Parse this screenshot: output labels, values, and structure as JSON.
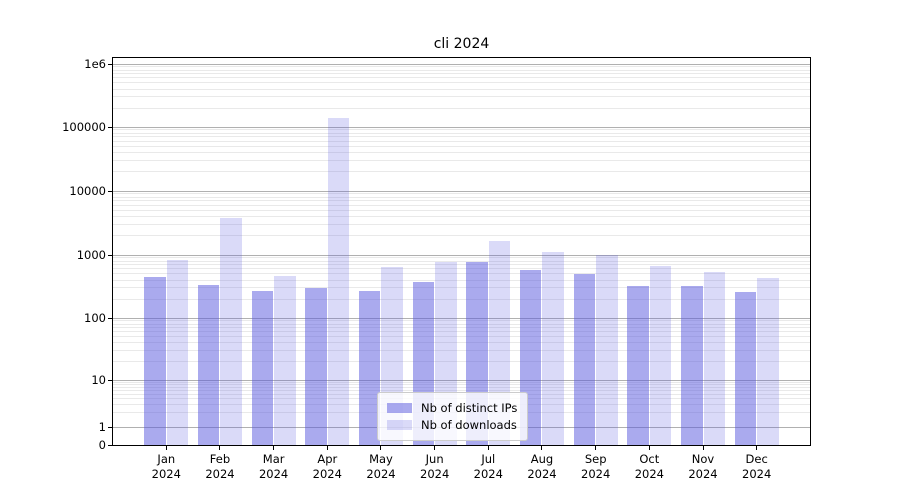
{
  "chart_data": {
    "type": "bar",
    "title": "cli 2024",
    "categories": [
      "Jan 2024",
      "Feb 2024",
      "Mar 2024",
      "Apr 2024",
      "May 2024",
      "Jun 2024",
      "Jul 2024",
      "Aug 2024",
      "Sep 2024",
      "Oct 2024",
      "Nov 2024",
      "Dec 2024"
    ],
    "x_tick_months": [
      "Jan",
      "Feb",
      "Mar",
      "Apr",
      "May",
      "Jun",
      "Jul",
      "Aug",
      "Sep",
      "Oct",
      "Nov",
      "Dec"
    ],
    "x_tick_year": "2024",
    "series": [
      {
        "name": "Nb of distinct IPs",
        "color": "#aaaaee",
        "fill": "rgba(85,85,221,0.5)",
        "values": [
          450,
          340,
          270,
          300,
          270,
          370,
          780,
          580,
          500,
          320,
          320,
          260
        ]
      },
      {
        "name": "Nb of downloads",
        "color": "#dcdcf8",
        "fill": "rgba(85,85,221,0.22)",
        "values": [
          830,
          3800,
          470,
          140000,
          650,
          780,
          1650,
          1100,
          1000,
          670,
          530,
          430
        ]
      }
    ],
    "yscale": "symlog",
    "ylim": [
      0,
      1000000
    ],
    "ytick_values": [
      0,
      1,
      10,
      100,
      1000,
      10000,
      100000,
      1000000
    ],
    "ytick_labels": [
      "0",
      "1",
      "10",
      "100",
      "1000",
      "10000",
      "100000",
      "1e6"
    ],
    "grid": true,
    "grid_major_color": "#b0b0b0",
    "grid_minor_color": "#e9e9e9",
    "legend_position": "lower center",
    "legend_labels": [
      "Nb of distinct IPs",
      "Nb of downloads"
    ]
  }
}
